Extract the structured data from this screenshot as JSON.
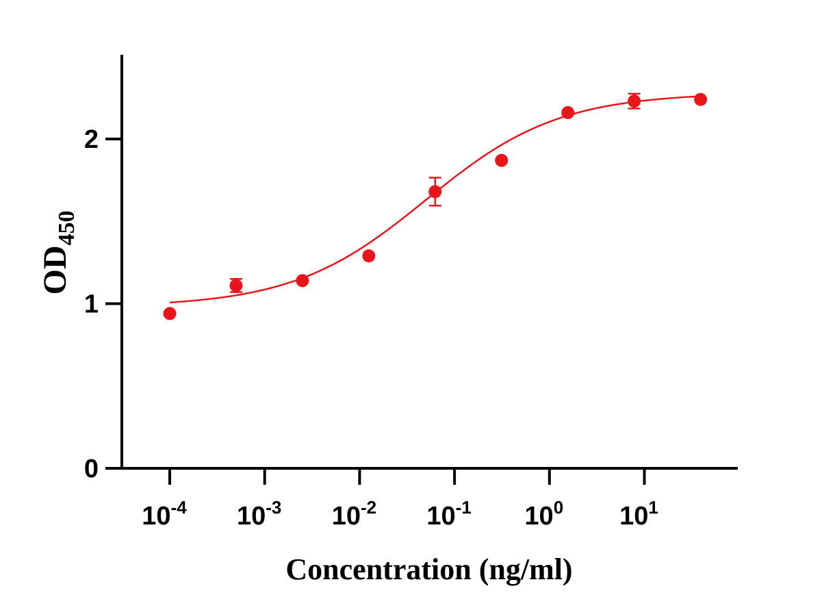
{
  "colors": {
    "series": "#e8151b",
    "axis": "#000000"
  },
  "chart_data": {
    "type": "scatter",
    "xscale": "log",
    "title": "",
    "xlabel": "Concentration (ng/ml)",
    "ylabel": {
      "main": "OD",
      "subscript": "450"
    },
    "xlim": [
      4e-05,
      150
    ],
    "ylim": [
      0,
      2.5
    ],
    "x_ticks": [
      {
        "value": 0.0001,
        "base": "10",
        "exp": "-4"
      },
      {
        "value": 0.001,
        "base": "10",
        "exp": "-3"
      },
      {
        "value": 0.01,
        "base": "10",
        "exp": "-2"
      },
      {
        "value": 0.1,
        "base": "10",
        "exp": "-1"
      },
      {
        "value": 1,
        "base": "10",
        "exp": "0"
      },
      {
        "value": 10,
        "base": "10",
        "exp": "1"
      }
    ],
    "y_ticks": [
      {
        "value": 0,
        "label": "0"
      },
      {
        "value": 1,
        "label": "1"
      },
      {
        "value": 2,
        "label": "2"
      }
    ],
    "series": [
      {
        "name": "OD450",
        "points": [
          {
            "x": 0.0001,
            "y": 0.94,
            "err": 0.0
          },
          {
            "x": 0.0005,
            "y": 1.11,
            "err": 0.04
          },
          {
            "x": 0.0025,
            "y": 1.14,
            "err": 0.0
          },
          {
            "x": 0.0125,
            "y": 1.29,
            "err": 0.0
          },
          {
            "x": 0.0625,
            "y": 1.68,
            "err": 0.085
          },
          {
            "x": 0.3125,
            "y": 1.87,
            "err": 0.0
          },
          {
            "x": 1.5625,
            "y": 2.16,
            "err": 0.0
          },
          {
            "x": 7.8125,
            "y": 2.23,
            "err": 0.045
          },
          {
            "x": 39.0625,
            "y": 2.24,
            "err": 0.0
          }
        ],
        "fit": {
          "model": "4PL",
          "bottom": 0.98,
          "top": 2.28,
          "ec50": 0.05,
          "hill": 0.62,
          "x_range": [
            0.0001,
            39.0625
          ]
        }
      }
    ],
    "grid": false,
    "legend": "none"
  }
}
